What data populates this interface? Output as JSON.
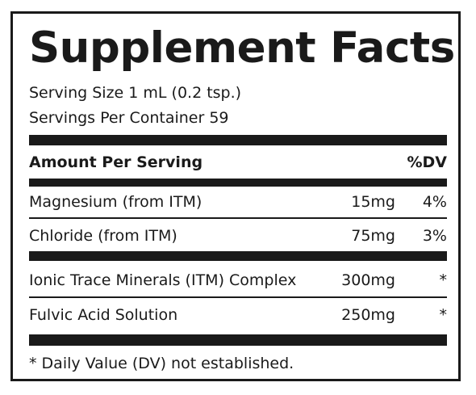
{
  "label": {
    "title": "Supplement Facts",
    "serving_size": "Serving Size 1 mL (0.2 tsp.)",
    "servings_per_container": "Servings Per Container 59",
    "header": {
      "amount_per_serving": "Amount Per Serving",
      "dv": "%DV"
    },
    "nutrients": [
      {
        "name": "Magnesium (from ITM)",
        "amount": "15mg",
        "dv": "4%"
      },
      {
        "name": "Chloride (from ITM)",
        "amount": "75mg",
        "dv": "3%"
      }
    ],
    "other": [
      {
        "name": "Ionic Trace Minerals (ITM) Complex",
        "amount": "300mg",
        "dv": "*"
      },
      {
        "name": "Fulvic Acid Solution",
        "amount": "250mg",
        "dv": "*"
      }
    ],
    "footnote": "* Daily Value (DV) not established."
  }
}
